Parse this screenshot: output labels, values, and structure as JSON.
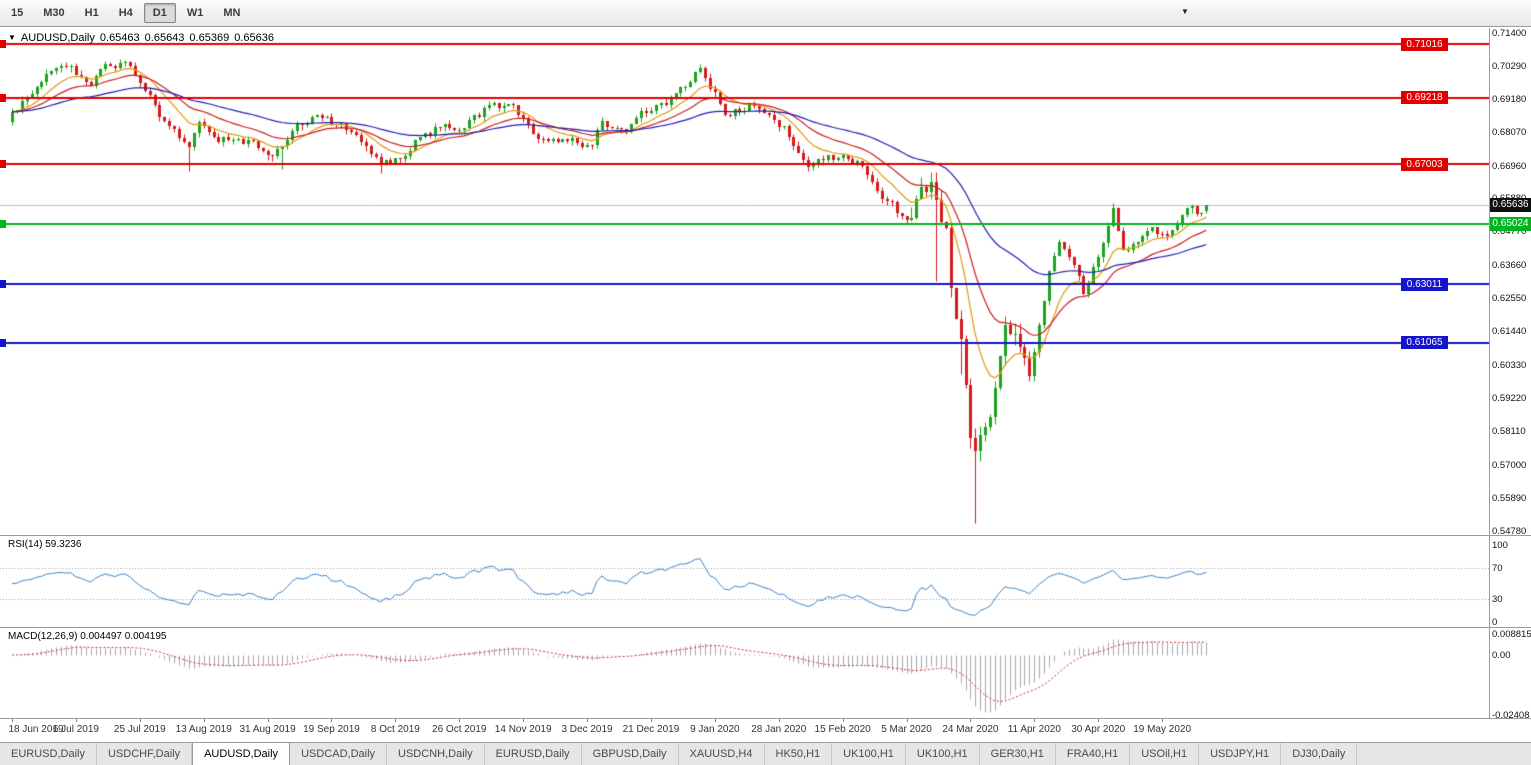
{
  "app": {
    "toolbar": {
      "timeframes": [
        {
          "label": "15",
          "active": false
        },
        {
          "label": "M30",
          "active": false
        },
        {
          "label": "H1",
          "active": false
        },
        {
          "label": "H4",
          "active": false
        },
        {
          "label": "D1",
          "active": true
        },
        {
          "label": "W1",
          "active": false
        },
        {
          "label": "MN",
          "active": false
        }
      ],
      "overflow_icon": "▼"
    },
    "tabs": [
      {
        "label": "EURUSD,Daily",
        "active": false
      },
      {
        "label": "USDCHF,Daily",
        "active": false
      },
      {
        "label": "AUDUSD,Daily",
        "active": true
      },
      {
        "label": "USDCAD,Daily",
        "active": false
      },
      {
        "label": "USDCNH,Daily",
        "active": false
      },
      {
        "label": "EURUSD,Daily",
        "active": false
      },
      {
        "label": "GBPUSD,Daily",
        "active": false
      },
      {
        "label": "XAUUSD,H4",
        "active": false
      },
      {
        "label": "HK50,H1",
        "active": false
      },
      {
        "label": "UK100,H1",
        "active": false
      },
      {
        "label": "UK100,H1",
        "active": false
      },
      {
        "label": "GER30,H1",
        "active": false
      },
      {
        "label": "FRA40,H1",
        "active": false
      },
      {
        "label": "USOil,H1",
        "active": false
      },
      {
        "label": "USDJPY,H1",
        "active": false
      },
      {
        "label": "DJ30,Daily",
        "active": false
      }
    ]
  },
  "chart": {
    "title": {
      "arrow_icon": "▼",
      "symbol": "AUDUSD,Daily",
      "open": "0.65463",
      "high": "0.65643",
      "low": "0.65369",
      "close": "0.65636"
    },
    "price_axis": [
      {
        "text": "0.71400",
        "value": 0.714
      },
      {
        "text": "0.70290",
        "value": 0.7029
      },
      {
        "text": "0.69180",
        "value": 0.6918
      },
      {
        "text": "0.68070",
        "value": 0.6807
      },
      {
        "text": "0.66960",
        "value": 0.6696
      },
      {
        "text": "0.65880",
        "value": 0.6588
      },
      {
        "text": "0.64770",
        "value": 0.6477
      },
      {
        "text": "0.63660",
        "value": 0.6366
      },
      {
        "text": "0.62550",
        "value": 0.6255
      },
      {
        "text": "0.61440",
        "value": 0.6144
      },
      {
        "text": "0.60330",
        "value": 0.6033
      },
      {
        "text": "0.59220",
        "value": 0.5922
      },
      {
        "text": "0.58110",
        "value": 0.5811
      },
      {
        "text": "0.57000",
        "value": 0.57
      },
      {
        "text": "0.55890",
        "value": 0.5589
      },
      {
        "text": "0.54780",
        "value": 0.5478
      }
    ],
    "hlines": [
      {
        "text": "0.71016",
        "value": 0.71016,
        "color": "#e00000",
        "label_pos": "chart"
      },
      {
        "text": "0.69218",
        "value": 0.69218,
        "color": "#e00000",
        "label_pos": "chart"
      },
      {
        "text": "0.67003",
        "value": 0.67003,
        "color": "#e00000",
        "label_pos": "chart"
      },
      {
        "text": "0.65024",
        "value": 0.65024,
        "color": "#00b41e",
        "label_pos": "axis"
      },
      {
        "text": "0.63011",
        "value": 0.63011,
        "color": "#1414cd",
        "label_pos": "chart"
      },
      {
        "text": "0.61065",
        "value": 0.61065,
        "color": "#1414cd",
        "label_pos": "chart"
      }
    ],
    "current_price": {
      "text": "0.65636",
      "value": 0.65636
    }
  },
  "rsi": {
    "label": "RSI(14) 59.3236",
    "axis": [
      {
        "text": "100",
        "value": 100
      },
      {
        "text": "70",
        "value": 70
      },
      {
        "text": "30",
        "value": 30
      },
      {
        "text": "0",
        "value": 0
      }
    ]
  },
  "macd": {
    "label": "MACD(12,26,9) 0.004497 0.004195",
    "axis": [
      {
        "text": "0.008815",
        "value": 0.008815
      },
      {
        "text": "0.00",
        "value": 0
      },
      {
        "text": "-0.02408",
        "value": -0.02408
      }
    ]
  },
  "time_axis": [
    "18 Jun 2019",
    "6 Jul 2019",
    "25 Jul 2019",
    "13 Aug 2019",
    "31 Aug 2019",
    "19 Sep 2019",
    "8 Oct 2019",
    "26 Oct 2019",
    "14 Nov 2019",
    "3 Dec 2019",
    "21 Dec 2019",
    "9 Jan 2020",
    "28 Jan 2020",
    "15 Feb 2020",
    "5 Mar 2020",
    "24 Mar 2020",
    "11 Apr 2020",
    "30 Apr 2020",
    "19 May 2020"
  ],
  "chart_data": {
    "type": "candlestick",
    "symbol": "AUDUSD",
    "timeframe": "Daily",
    "title": "AUDUSD,Daily",
    "current_ohlc": {
      "open": 0.65463,
      "high": 0.65643,
      "low": 0.65369,
      "close": 0.65636
    },
    "y_range": [
      0.5465,
      0.7155
    ],
    "x_range": [
      "18 Jun 2019",
      "26 May 2020"
    ],
    "candles_count": 244,
    "date_label_step": 13,
    "close_anchors": [
      [
        0,
        0.6876
      ],
      [
        3,
        0.6924
      ],
      [
        5,
        0.696
      ],
      [
        8,
        0.7013
      ],
      [
        12,
        0.7027
      ],
      [
        16,
        0.6962
      ],
      [
        18,
        0.7018
      ],
      [
        23,
        0.7043
      ],
      [
        27,
        0.6946
      ],
      [
        31,
        0.6845
      ],
      [
        36,
        0.6758
      ],
      [
        38,
        0.684
      ],
      [
        42,
        0.6776
      ],
      [
        46,
        0.6785
      ],
      [
        49,
        0.6777
      ],
      [
        52,
        0.673
      ],
      [
        55,
        0.676
      ],
      [
        57,
        0.6813
      ],
      [
        62,
        0.6864
      ],
      [
        66,
        0.6833
      ],
      [
        70,
        0.6798
      ],
      [
        75,
        0.67
      ],
      [
        80,
        0.6728
      ],
      [
        83,
        0.679
      ],
      [
        87,
        0.6824
      ],
      [
        92,
        0.6821
      ],
      [
        97,
        0.69
      ],
      [
        102,
        0.6897
      ],
      [
        107,
        0.6785
      ],
      [
        112,
        0.6785
      ],
      [
        118,
        0.6764
      ],
      [
        120,
        0.6845
      ],
      [
        125,
        0.6808
      ],
      [
        128,
        0.688
      ],
      [
        133,
        0.69
      ],
      [
        140,
        0.7021
      ],
      [
        141,
        0.699
      ],
      [
        145,
        0.6865
      ],
      [
        151,
        0.6895
      ],
      [
        157,
        0.6827
      ],
      [
        162,
        0.669
      ],
      [
        166,
        0.673
      ],
      [
        172,
        0.6712
      ],
      [
        176,
        0.661
      ],
      [
        182,
        0.6515
      ],
      [
        185,
        0.6625
      ],
      [
        187,
        0.664
      ],
      [
        188,
        0.6583
      ],
      [
        190,
        0.6488
      ],
      [
        191,
        0.629
      ],
      [
        192,
        0.6185
      ],
      [
        193,
        0.612
      ],
      [
        195,
        0.579
      ],
      [
        196,
        0.5745
      ],
      [
        197,
        0.58
      ],
      [
        198,
        0.5825
      ],
      [
        200,
        0.5955
      ],
      [
        202,
        0.6165
      ],
      [
        204,
        0.6135
      ],
      [
        207,
        0.5995
      ],
      [
        209,
        0.6165
      ],
      [
        211,
        0.6345
      ],
      [
        213,
        0.644
      ],
      [
        216,
        0.6365
      ],
      [
        218,
        0.627
      ],
      [
        221,
        0.639
      ],
      [
        224,
        0.6555
      ],
      [
        226,
        0.6415
      ],
      [
        228,
        0.6435
      ],
      [
        232,
        0.649
      ],
      [
        235,
        0.646
      ],
      [
        238,
        0.653
      ],
      [
        240,
        0.656
      ],
      [
        241,
        0.6535
      ],
      [
        243,
        0.65636
      ]
    ],
    "extreme_wicks": {
      "23": {
        "high": 0.7048
      },
      "36": {
        "low": 0.6677
      },
      "55": {
        "low": 0.6685
      },
      "75": {
        "low": 0.6671
      },
      "162": {
        "low": 0.6682
      },
      "188": {
        "low": 0.6313
      },
      "193": {
        "low": 0.6003
      },
      "196": {
        "low": 0.5506
      },
      "224": {
        "high": 0.657
      }
    },
    "moving_averages": [
      {
        "period": 10,
        "color": "#e09a10"
      },
      {
        "period": 21,
        "color": "#cc2020"
      },
      {
        "period": 50,
        "color": "#2020b4"
      }
    ],
    "support_resistance": [
      0.71016,
      0.69218,
      0.67003,
      0.65024,
      0.63011,
      0.61065
    ],
    "indicators": [
      {
        "name": "RSI",
        "period": 14,
        "current": 59.3236,
        "levels": [
          70,
          30
        ],
        "range": [
          0,
          100
        ]
      },
      {
        "name": "MACD",
        "fast": 12,
        "slow": 26,
        "signal": 9,
        "macd_current": 0.004497,
        "signal_current": 0.004195,
        "scale_max": 0.008815,
        "scale_min": -0.02408
      }
    ],
    "colors": {
      "bull": "#1ea31e",
      "bear": "#d41c1c",
      "rsi_line": "#3d85c8",
      "rsi_levels": "#9a9a9a",
      "macd_hist": "#a8a8a8",
      "macd_signal": "#d03030",
      "current_price_line": "#bcbcbc",
      "current_price_box": "#111111"
    }
  }
}
